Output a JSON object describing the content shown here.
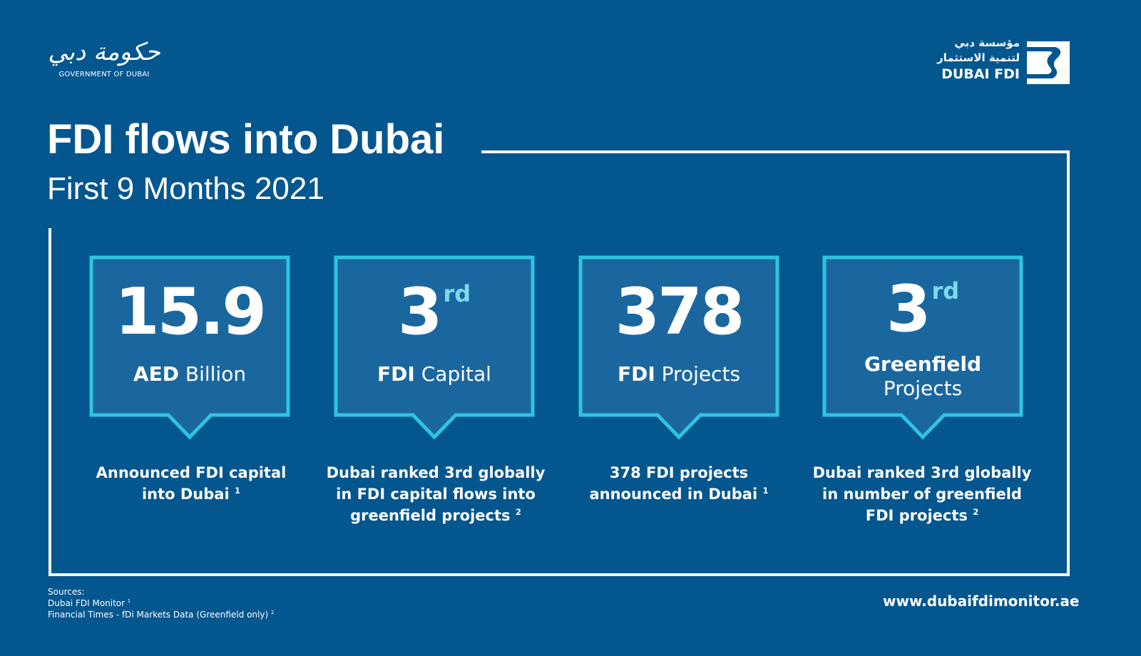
{
  "colors": {
    "background": "#04568f",
    "card_fill": "#1a67a0",
    "card_border": "#2ec4e0",
    "text": "#ffffff"
  },
  "logos": {
    "government": {
      "arabic": "حكومة دبي",
      "english": "GOVERNMENT OF DUBAI"
    },
    "dubai_fdi": {
      "arabic_line1": "مؤسسة دبي",
      "arabic_line2": "لتنمية الاستثمار",
      "english": "DUBAI FDI"
    }
  },
  "header": {
    "title": "FDI flows into Dubai",
    "subtitle": "First 9 Months 2021"
  },
  "cards": [
    {
      "value": "15.9",
      "suffix": "",
      "unit_bold": "AED",
      "unit_rest": "Billion",
      "desc": "Announced FDI capital into Dubai",
      "note": "1"
    },
    {
      "value": "3",
      "suffix": "rd",
      "unit_bold": "FDI",
      "unit_rest": "Capital",
      "desc": "Dubai ranked 3rd globally in FDI capital flows into greenfield projects",
      "note": "2"
    },
    {
      "value": "378",
      "suffix": "",
      "unit_bold": "FDI",
      "unit_rest": "Projects",
      "desc": "378 FDI projects announced in Dubai",
      "note": "1"
    },
    {
      "value": "3",
      "suffix": "rd",
      "unit_bold": "Greenfield",
      "unit_rest": "Projects",
      "desc": "Dubai ranked 3rd globally in number of greenfield FDI projects",
      "note": "2"
    }
  ],
  "footer": {
    "sources_label": "Sources:",
    "sources": [
      {
        "text": "Dubai FDI Monitor",
        "note": "1"
      },
      {
        "text": "Financial Times - fDi Markets Data (Greenfield only)",
        "note": "2"
      }
    ],
    "url": "www.dubaifdimonitor.ae"
  }
}
